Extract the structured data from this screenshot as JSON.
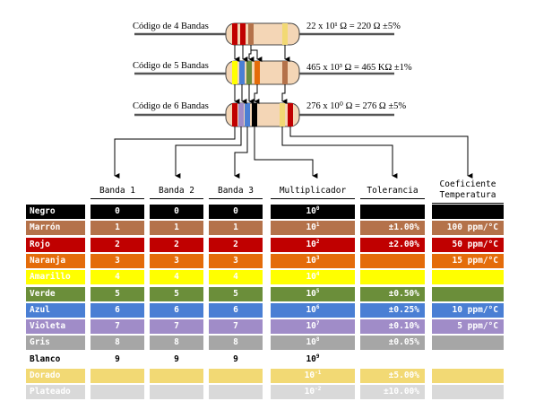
{
  "resistors": [
    {
      "label": "Código de 4 Bandas",
      "formula": "22  x  10¹ Ω = 220 Ω   ±5%"
    },
    {
      "label": "Código de 5 Bandas",
      "formula": "465  x  10³ Ω = 465 KΩ   ±1%"
    },
    {
      "label": "Código de 6 Bandas",
      "formula": "276  x  10⁰ Ω = 276 Ω   ±5%"
    }
  ],
  "headers": {
    "banda1": "Banda 1",
    "banda2": "Banda 2",
    "banda3": "Banda 3",
    "multiplicador": "Multiplicador",
    "tolerancia": "Tolerancia",
    "coef_line1": "Coeficiente",
    "coef_line2": "Temperatura"
  },
  "rows": [
    {
      "name": "Negro",
      "bg": "#000000",
      "fg": "#ffffff",
      "b1": "0",
      "b2": "0",
      "b3": "0",
      "m_base": "10",
      "m_exp": "0",
      "tol": "",
      "coef": ""
    },
    {
      "name": "Marrón",
      "bg": "#b4724a",
      "fg": "#ffffff",
      "b1": "1",
      "b2": "1",
      "b3": "1",
      "m_base": "10",
      "m_exp": "1",
      "tol": "±1.00%",
      "coef": "100 ppm/°C"
    },
    {
      "name": "Rojo",
      "bg": "#c00000",
      "fg": "#ffffff",
      "b1": "2",
      "b2": "2",
      "b3": "2",
      "m_base": "10",
      "m_exp": "2",
      "tol": "±2.00%",
      "coef": "50 ppm/°C"
    },
    {
      "name": "Naranja",
      "bg": "#e46c0a",
      "fg": "#ffffff",
      "b1": "3",
      "b2": "3",
      "b3": "3",
      "m_base": "10",
      "m_exp": "3",
      "tol": "",
      "coef": "15 ppm/°C"
    },
    {
      "name": "Amarillo",
      "bg": "#ffff00",
      "fg": "#ffffff",
      "b1": "4",
      "b2": "4",
      "b3": "4",
      "m_base": "10",
      "m_exp": "4",
      "tol": "",
      "coef": ""
    },
    {
      "name": "Verde",
      "bg": "#6b8e3a",
      "fg": "#ffffff",
      "b1": "5",
      "b2": "5",
      "b3": "5",
      "m_base": "10",
      "m_exp": "5",
      "tol": "±0.50%",
      "coef": ""
    },
    {
      "name": "Azul",
      "bg": "#4a7fd4",
      "fg": "#ffffff",
      "b1": "6",
      "b2": "6",
      "b3": "6",
      "m_base": "10",
      "m_exp": "6",
      "tol": "±0.25%",
      "coef": "10 ppm/°C"
    },
    {
      "name": "Violeta",
      "bg": "#a08cc8",
      "fg": "#ffffff",
      "b1": "7",
      "b2": "7",
      "b3": "7",
      "m_base": "10",
      "m_exp": "7",
      "tol": "±0.10%",
      "coef": "5 ppm/°C"
    },
    {
      "name": "Gris",
      "bg": "#a6a6a6",
      "fg": "#ffffff",
      "b1": "8",
      "b2": "8",
      "b3": "8",
      "m_base": "10",
      "m_exp": "8",
      "tol": "±0.05%",
      "coef": ""
    },
    {
      "name": "Blanco",
      "bg": "#ffffff",
      "fg": "#000000",
      "b1": "9",
      "b2": "9",
      "b3": "9",
      "m_base": "10",
      "m_exp": "9",
      "tol": "",
      "coef": ""
    },
    {
      "name": "Dorado",
      "bg": "#f2d974",
      "fg": "#ffffff",
      "b1": "",
      "b2": "",
      "b3": "",
      "m_base": "10",
      "m_exp": "-1",
      "tol": "±5.00%",
      "coef": ""
    },
    {
      "name": "Plateado",
      "bg": "#d9d9d9",
      "fg": "#ffffff",
      "b1": "",
      "b2": "",
      "b3": "",
      "m_base": "10",
      "m_exp": "-2",
      "tol": "±10.00%",
      "coef": ""
    }
  ]
}
